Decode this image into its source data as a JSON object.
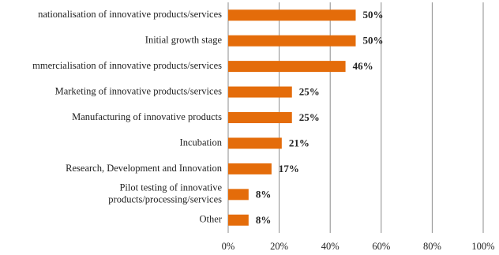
{
  "chart_data": {
    "type": "barh",
    "categories": [
      "nationalisation of innovative products/services",
      "Initial growth stage",
      "mmercialisation of innovative products/services",
      "Marketing of innovative products/services",
      "Manufacturing of innovative products",
      "Incubation",
      "Research, Development and Innovation",
      [
        "Pilot testing of innovative",
        "products/processing/services"
      ],
      "Other"
    ],
    "values": [
      50,
      50,
      46,
      25,
      25,
      21,
      17,
      8,
      8
    ],
    "value_labels": [
      "50%",
      "50%",
      "46%",
      "25%",
      "25%",
      "21%",
      "17%",
      "8%",
      "8%"
    ],
    "color": "#e46c0a",
    "xlim": [
      0,
      100
    ],
    "xticks": [
      {
        "value": 0,
        "label": "0%"
      },
      {
        "value": 20,
        "label": "20%"
      },
      {
        "value": 40,
        "label": "40%"
      },
      {
        "value": 60,
        "label": "60%"
      },
      {
        "value": 80,
        "label": "80%"
      },
      {
        "value": 100,
        "label": "100%"
      }
    ],
    "grid": true
  }
}
